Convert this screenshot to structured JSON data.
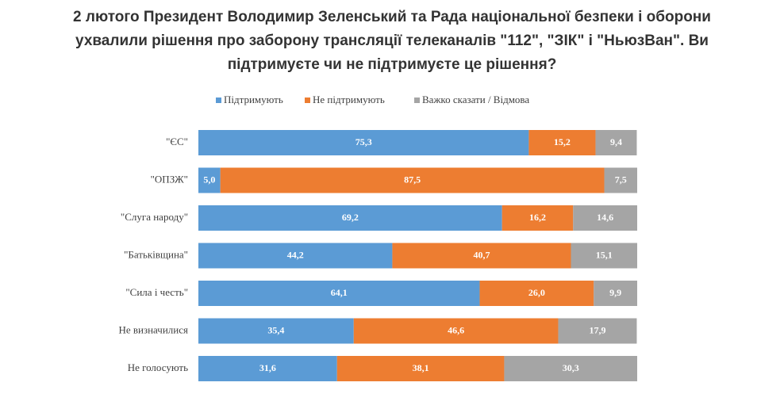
{
  "chart_data": {
    "type": "stacked-barh",
    "title": [
      "2 лютого Президент Володимир Зеленський та Рада національної безпеки і оборони",
      "ухвалили рішення про заборону трансляції телеканалів \"112\", \"ЗІК\" і \"НьюзВан\". Ви",
      "підтримуєте чи не підтримуєте це рішення?"
    ],
    "categories": [
      "\"ЄС\"",
      "\"ОПЗЖ\"",
      "\"Слуга народу\"",
      "\"Батьківщина\"",
      "\"Сила і честь\"",
      "Не визначилися",
      "Не голосують"
    ],
    "xlim": [
      0,
      100
    ],
    "legend": "top",
    "series": [
      {
        "name": "Підтримують",
        "color": "#5b9bd5",
        "values": [
          75.3,
          5.0,
          69.2,
          44.2,
          64.1,
          35.4,
          31.6
        ],
        "value_labels": [
          "75,3",
          "5,0",
          "69,2",
          "44,2",
          "64,1",
          "35,4",
          "31,6"
        ]
      },
      {
        "name": "Не підтримують",
        "color": "#ed7d31",
        "values": [
          15.2,
          87.5,
          16.2,
          40.7,
          26.0,
          46.6,
          38.1
        ],
        "value_labels": [
          "15,2",
          "87,5",
          "16,2",
          "40,7",
          "26,0",
          "46,6",
          "38,1"
        ]
      },
      {
        "name": "Важко сказати  / Відмова",
        "color": "#a5a5a5",
        "values": [
          9.4,
          7.5,
          14.6,
          15.1,
          9.9,
          17.9,
          30.3
        ],
        "value_labels": [
          "9,4",
          "7,5",
          "14,6",
          "15,1",
          "9,9",
          "17,9",
          "30,3"
        ]
      }
    ]
  }
}
